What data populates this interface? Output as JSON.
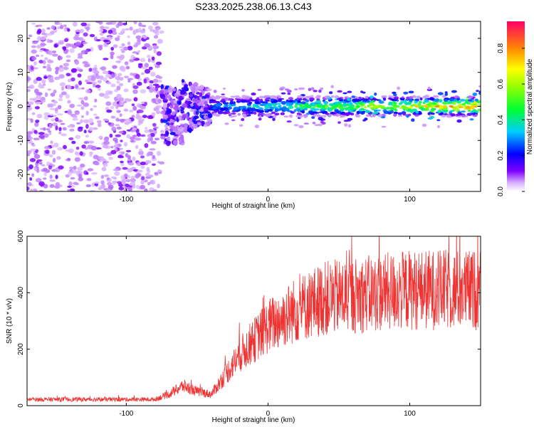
{
  "chart_data": [
    {
      "type": "heatmap",
      "title": "S233.2025.238.06.13.C43",
      "xlabel": "Height of straight line (km)",
      "ylabel": "Frequency (Hz)",
      "xlim": [
        -170,
        150
      ],
      "ylim": [
        -25,
        25
      ],
      "xticks": [
        -100,
        0,
        100
      ],
      "yticks": [
        -20,
        -10,
        0,
        10,
        20
      ],
      "colorbar": {
        "label": "Normalized spectral amplitude",
        "range": [
          0,
          0.95
        ],
        "ticks": [
          0.0,
          0.2,
          0.4,
          0.6,
          0.8
        ]
      },
      "features": [
        {
          "x_range": [
            -170,
            -75
          ],
          "freq_spread": 25,
          "amplitude": 0.1
        },
        {
          "x_range": [
            -75,
            -40
          ],
          "freq_spread": 10,
          "amplitude": 0.3
        },
        {
          "x_range": [
            -40,
            150
          ],
          "freq_spread": 3,
          "amplitude": 0.85,
          "center_freq": 0
        }
      ]
    },
    {
      "type": "line",
      "xlabel": "Height of straight line (km)",
      "ylabel": "SNR (10 * v/v)",
      "xlim": [
        -170,
        150
      ],
      "ylim": [
        0,
        600
      ],
      "xticks": [
        -100,
        0,
        100
      ],
      "yticks": [
        0,
        200,
        400,
        600
      ],
      "color": "#ee3333",
      "envelope": {
        "x": [
          -170,
          -80,
          -70,
          -60,
          -50,
          -40,
          -30,
          -20,
          -10,
          0,
          20,
          40,
          60,
          80,
          100,
          120,
          150
        ],
        "y": [
          22,
          22,
          40,
          70,
          50,
          40,
          110,
          180,
          230,
          280,
          340,
          380,
          390,
          400,
          410,
          410,
          410
        ]
      }
    }
  ]
}
